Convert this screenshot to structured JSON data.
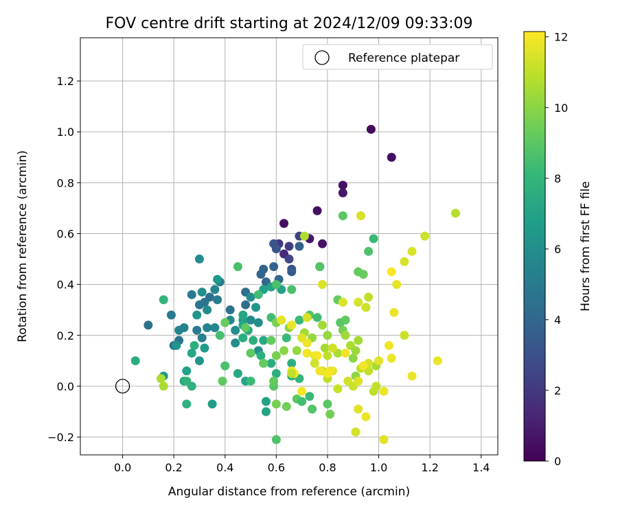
{
  "chart_data": {
    "type": "scatter",
    "title": "FOV centre drift starting at 2024/12/09 09:33:09",
    "xlabel": "Angular distance from reference (arcmin)",
    "ylabel": "Rotation from reference (arcmin)",
    "xlim": [
      -0.165,
      1.465
    ],
    "ylim": [
      -0.27,
      1.37
    ],
    "xticks": [
      "0.0",
      "0.2",
      "0.4",
      "0.6",
      "0.8",
      "1.0",
      "1.2",
      "1.4"
    ],
    "yticks": [
      "−0.2",
      "0.0",
      "0.2",
      "0.4",
      "0.6",
      "0.8",
      "1.0",
      "1.2"
    ],
    "grid": true,
    "legend": {
      "placement": "top-right",
      "entries": [
        {
          "label": "Reference platepar",
          "marker": "open-circle",
          "x": 0.0,
          "y": 0.0
        }
      ]
    },
    "colorbar": {
      "label": "Hours from first FF file",
      "min": 0,
      "max": 12.15,
      "ticks": [
        "0",
        "2",
        "4",
        "6",
        "8",
        "10",
        "12"
      ],
      "colormap": "viridis"
    },
    "colormap_stops": [
      "#440154",
      "#482878",
      "#3e4a89",
      "#31688e",
      "#26828e",
      "#1f9e89",
      "#35b779",
      "#6ece58",
      "#b5de2b",
      "#fde725"
    ],
    "points": [
      [
        0.97,
        1.01,
        0.3
      ],
      [
        1.05,
        0.9,
        0.4
      ],
      [
        0.86,
        0.79,
        0.6
      ],
      [
        0.86,
        0.76,
        0.8
      ],
      [
        0.76,
        0.69,
        0.5
      ],
      [
        0.63,
        0.64,
        0.5
      ],
      [
        0.73,
        0.58,
        0.7
      ],
      [
        0.78,
        0.56,
        0.6
      ],
      [
        0.63,
        0.52,
        1.4
      ],
      [
        0.61,
        0.56,
        2.0
      ],
      [
        0.65,
        0.55,
        2.2
      ],
      [
        0.69,
        0.59,
        2.4
      ],
      [
        0.65,
        0.5,
        2.6
      ],
      [
        0.66,
        0.46,
        3.0
      ],
      [
        0.6,
        0.54,
        3.2
      ],
      [
        0.59,
        0.56,
        3.2
      ],
      [
        0.66,
        0.45,
        3.5
      ],
      [
        0.69,
        0.55,
        3.6
      ],
      [
        0.77,
        0.47,
        3.6
      ],
      [
        0.59,
        0.47,
        3.8
      ],
      [
        0.55,
        0.46,
        3.8
      ],
      [
        0.61,
        0.42,
        4.0
      ],
      [
        0.54,
        0.44,
        4.0
      ],
      [
        0.56,
        0.41,
        4.0
      ],
      [
        0.48,
        0.37,
        4.3
      ],
      [
        0.48,
        0.32,
        4.3
      ],
      [
        0.42,
        0.3,
        4.5
      ],
      [
        0.34,
        0.35,
        4.4
      ],
      [
        0.32,
        0.33,
        4.6
      ],
      [
        0.3,
        0.32,
        4.7
      ],
      [
        0.27,
        0.36,
        5.0
      ],
      [
        0.38,
        0.41,
        5.0
      ],
      [
        0.36,
        0.38,
        5.5
      ],
      [
        0.37,
        0.34,
        5.1
      ],
      [
        0.1,
        0.24,
        4.5
      ],
      [
        0.19,
        0.28,
        5.0
      ],
      [
        0.22,
        0.18,
        4.6
      ],
      [
        0.2,
        0.16,
        4.9
      ],
      [
        0.22,
        0.22,
        5.5
      ],
      [
        0.24,
        0.23,
        5.4
      ],
      [
        0.29,
        0.22,
        5.0
      ],
      [
        0.31,
        0.19,
        5.3
      ],
      [
        0.33,
        0.23,
        5.4
      ],
      [
        0.36,
        0.23,
        5.6
      ],
      [
        0.3,
        0.5,
        5.9
      ],
      [
        0.31,
        0.37,
        6.0
      ],
      [
        0.37,
        0.42,
        6.5
      ],
      [
        0.33,
        0.3,
        5.9
      ],
      [
        0.42,
        0.26,
        5.8
      ],
      [
        0.44,
        0.17,
        6.0
      ],
      [
        0.5,
        0.35,
        5.9
      ],
      [
        0.5,
        0.26,
        5.7
      ],
      [
        0.44,
        0.22,
        6.0
      ],
      [
        0.53,
        0.25,
        6.0
      ],
      [
        0.53,
        0.14,
        6.0
      ],
      [
        0.47,
        0.26,
        6.6
      ],
      [
        0.52,
        0.31,
        6.4
      ],
      [
        0.55,
        0.38,
        6.9
      ],
      [
        0.58,
        0.39,
        7.0
      ],
      [
        0.62,
        0.38,
        7.0
      ],
      [
        0.3,
        0.1,
        6.3
      ],
      [
        0.32,
        0.15,
        6.6
      ],
      [
        0.29,
        0.28,
        6.4
      ],
      [
        0.27,
        0.13,
        7.2
      ],
      [
        0.16,
        0.04,
        6.5
      ],
      [
        0.21,
        0.16,
        6.3
      ],
      [
        0.25,
        0.06,
        6.9
      ],
      [
        0.24,
        0.02,
        7.3
      ],
      [
        0.25,
        0.02,
        7.9
      ],
      [
        0.27,
        0.0,
        7.8
      ],
      [
        0.25,
        -0.07,
        7.8
      ],
      [
        0.16,
        0.34,
        7.9
      ],
      [
        0.05,
        0.1,
        7.5
      ],
      [
        0.28,
        0.16,
        7.6
      ],
      [
        0.35,
        -0.07,
        6.8
      ],
      [
        0.47,
        0.19,
        7.5
      ],
      [
        0.47,
        0.24,
        7.2
      ],
      [
        0.47,
        0.28,
        7.2
      ],
      [
        0.49,
        0.22,
        7.3
      ],
      [
        0.51,
        0.18,
        7.6
      ],
      [
        0.55,
        0.18,
        7.4
      ],
      [
        0.55,
        0.09,
        7.8
      ],
      [
        0.54,
        0.12,
        7.7
      ],
      [
        0.58,
        0.09,
        7.5
      ],
      [
        0.6,
        0.05,
        7.6
      ],
      [
        0.56,
        -0.06,
        7.0
      ],
      [
        0.56,
        -0.1,
        7.1
      ],
      [
        0.48,
        0.02,
        7.1
      ],
      [
        0.45,
        0.05,
        7.3
      ],
      [
        0.5,
        0.02,
        8.2
      ],
      [
        0.58,
        0.27,
        8.4
      ],
      [
        0.53,
        0.36,
        8.4
      ],
      [
        0.6,
        0.4,
        8.6
      ],
      [
        0.66,
        0.38,
        8.6
      ],
      [
        0.64,
        0.19,
        8.2
      ],
      [
        0.66,
        0.04,
        7.7
      ],
      [
        0.66,
        0.09,
        7.6
      ],
      [
        0.69,
        0.03,
        8.0
      ],
      [
        0.69,
        0.26,
        8.2
      ],
      [
        0.73,
        0.28,
        8.8
      ],
      [
        0.76,
        0.27,
        8.4
      ],
      [
        0.77,
        0.47,
        8.8
      ],
      [
        0.86,
        0.67,
        9.0
      ],
      [
        0.98,
        0.58,
        8.2
      ],
      [
        0.96,
        0.53,
        8.7
      ],
      [
        0.94,
        0.44,
        9.3
      ],
      [
        0.92,
        0.45,
        9.2
      ],
      [
        0.84,
        0.34,
        9.2
      ],
      [
        0.85,
        0.25,
        9.0
      ],
      [
        0.87,
        0.26,
        9.1
      ],
      [
        0.86,
        0.22,
        9.6
      ],
      [
        0.45,
        0.47,
        8.6
      ],
      [
        0.38,
        0.2,
        8.5
      ],
      [
        0.4,
        0.25,
        9.3
      ],
      [
        0.39,
        0.02,
        9.1
      ],
      [
        0.4,
        0.08,
        8.6
      ],
      [
        0.48,
        0.23,
        9.1
      ],
      [
        0.5,
        0.13,
        9.1
      ],
      [
        0.55,
        0.09,
        9.2
      ],
      [
        0.58,
        0.18,
        9.2
      ],
      [
        0.59,
        0.0,
        9.0
      ],
      [
        0.59,
        0.02,
        9.2
      ],
      [
        0.6,
        -0.07,
        9.6
      ],
      [
        0.64,
        -0.08,
        9.5
      ],
      [
        0.6,
        -0.21,
        8.7
      ],
      [
        0.68,
        -0.05,
        9.0
      ],
      [
        0.7,
        -0.06,
        8.4
      ],
      [
        0.73,
        -0.04,
        8.2
      ],
      [
        0.74,
        -0.09,
        8.8
      ],
      [
        0.8,
        -0.07,
        9.0
      ],
      [
        0.81,
        -0.11,
        9.5
      ],
      [
        0.6,
        0.25,
        9.7
      ],
      [
        0.6,
        0.12,
        9.6
      ],
      [
        0.63,
        0.14,
        10.0
      ],
      [
        0.65,
        0.23,
        10.0
      ],
      [
        0.68,
        0.14,
        10.2
      ],
      [
        0.71,
        0.21,
        10.4
      ],
      [
        0.74,
        0.19,
        10.2
      ],
      [
        0.78,
        0.24,
        10.4
      ],
      [
        0.79,
        0.15,
        10.5
      ],
      [
        0.8,
        0.2,
        10.2
      ],
      [
        0.84,
        0.13,
        10.6
      ],
      [
        0.87,
        0.2,
        10.4
      ],
      [
        0.89,
        0.16,
        10.6
      ],
      [
        0.9,
        0.11,
        10.0
      ],
      [
        0.91,
        0.14,
        10.3
      ],
      [
        0.92,
        0.18,
        10.5
      ],
      [
        0.91,
        0.04,
        10.1
      ],
      [
        0.93,
        0.07,
        11.0
      ],
      [
        0.96,
        0.06,
        11.0
      ],
      [
        0.99,
        0.08,
        10.5
      ],
      [
        0.98,
        -0.02,
        11.0
      ],
      [
        0.99,
        0.0,
        11.0
      ],
      [
        0.15,
        0.03,
        10.6
      ],
      [
        0.16,
        0.0,
        10.6
      ],
      [
        0.8,
        0.12,
        11.0
      ],
      [
        0.78,
        0.06,
        11.0
      ],
      [
        0.82,
        0.06,
        11.6
      ],
      [
        0.8,
        0.03,
        11.0
      ],
      [
        0.84,
        -0.01,
        11.2
      ],
      [
        0.88,
        0.02,
        11.3
      ],
      [
        0.9,
        0.0,
        11.2
      ],
      [
        0.92,
        0.02,
        11.5
      ],
      [
        0.96,
        0.35,
        11.0
      ],
      [
        0.95,
        0.31,
        11.2
      ],
      [
        0.92,
        0.33,
        11.4
      ],
      [
        0.86,
        0.33,
        11.5
      ],
      [
        0.78,
        0.4,
        11.5
      ],
      [
        0.71,
        0.59,
        10.7
      ],
      [
        0.93,
        0.67,
        11.4
      ],
      [
        1.3,
        0.68,
        10.8
      ],
      [
        1.18,
        0.59,
        11.2
      ],
      [
        1.13,
        0.53,
        11.5
      ],
      [
        1.1,
        0.49,
        11.4
      ],
      [
        1.05,
        0.45,
        12.1
      ],
      [
        1.07,
        0.4,
        11.7
      ],
      [
        1.06,
        0.29,
        11.8
      ],
      [
        1.1,
        0.2,
        11.2
      ],
      [
        1.04,
        0.16,
        11.9
      ],
      [
        1.05,
        0.11,
        11.8
      ],
      [
        1.0,
        0.1,
        11.6
      ],
      [
        0.96,
        0.09,
        11.4
      ],
      [
        0.94,
        0.08,
        11.9
      ],
      [
        1.02,
        -0.02,
        11.8
      ],
      [
        1.02,
        -0.21,
        11.6
      ],
      [
        0.95,
        -0.12,
        11.8
      ],
      [
        0.92,
        -0.09,
        11.6
      ],
      [
        0.91,
        -0.18,
        11.4
      ],
      [
        1.13,
        0.04,
        11.8
      ],
      [
        1.23,
        0.1,
        11.8
      ],
      [
        0.72,
        0.17,
        11.9
      ],
      [
        0.72,
        0.13,
        11.9
      ],
      [
        0.75,
        0.12,
        11.8
      ],
      [
        0.76,
        0.12,
        12.0
      ],
      [
        0.66,
        0.06,
        11.9
      ],
      [
        0.7,
        -0.02,
        12.0
      ],
      [
        0.67,
        0.05,
        12.0
      ],
      [
        0.77,
        0.06,
        11.9
      ],
      [
        0.81,
        0.06,
        11.9
      ],
      [
        0.8,
        0.05,
        12.0
      ],
      [
        0.87,
        0.13,
        11.9
      ],
      [
        0.62,
        0.26,
        11.7
      ],
      [
        0.66,
        0.24,
        11.8
      ],
      [
        0.7,
        0.19,
        11.6
      ],
      [
        0.72,
        0.27,
        11.4
      ],
      [
        0.75,
        0.09,
        11.3
      ],
      [
        0.66,
        0.05,
        11.0
      ],
      [
        0.82,
        0.15,
        11.3
      ]
    ]
  }
}
